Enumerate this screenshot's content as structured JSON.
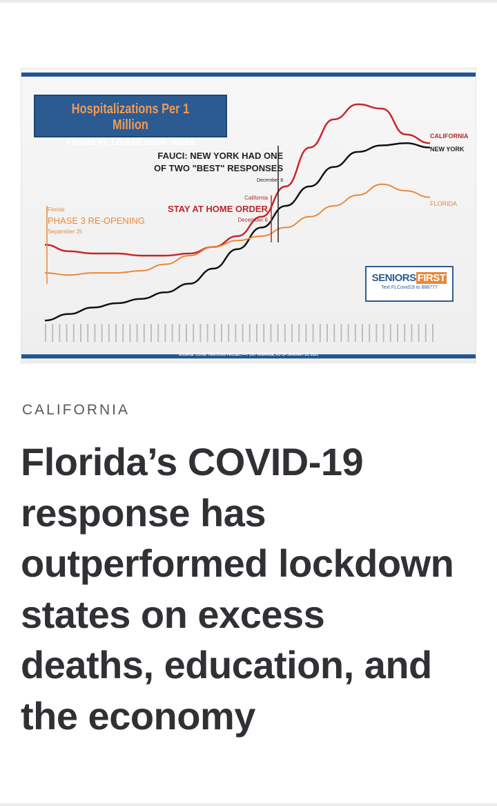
{
  "article": {
    "category": "CALIFORNIA",
    "headline": "Florida’s COVID-19 response has outperformed lockdown states on excess deaths, education, and the economy"
  },
  "hero_image": {
    "title": "Hospitalizations Per 1 Million",
    "subtitle": "Florida vs. Locked Down States",
    "annotations": {
      "fauci_line1": "FAUCI: NEW YORK HAD ONE",
      "fauci_line2": "OF TWO \"BEST\" RESPONSES",
      "fauci_date": "December 8",
      "california_label": "California",
      "stay_home": "STAY AT HOME ORDER",
      "stay_home_date": "December 6",
      "florida_label": "Florida",
      "phase3": "PHASE 3 RE-OPENING",
      "phase3_date": "September 25"
    },
    "logo": {
      "seniors": "SENIORS",
      "first": "FIRST",
      "tagline": "Text FLCovid19 to 888777"
    },
    "source": "SOURCE: COVID TRACKING PROJECT—7 DAY AVERAGE, AS OF JANUARY 26, 2021",
    "colors": {
      "brand_blue": "#2c5b92",
      "california": "#c8262a",
      "new_york": "#111111",
      "florida": "#e8883a"
    }
  },
  "chart_data": {
    "type": "line",
    "title": "Hospitalizations Per 1 Million",
    "subtitle": "Florida vs. Locked Down States",
    "series": [
      {
        "name": "CALIFORNIA",
        "color": "#c8262a",
        "values": [
          0.35,
          0.32,
          0.31,
          0.31,
          0.3,
          0.3,
          0.31,
          0.34,
          0.39,
          0.48,
          0.62,
          0.8,
          0.93,
          1.0,
          0.98,
          0.86,
          0.82
        ]
      },
      {
        "name": "NEW YORK",
        "color": "#111111",
        "values": [
          0.0,
          0.03,
          0.06,
          0.08,
          0.1,
          0.13,
          0.17,
          0.24,
          0.33,
          0.43,
          0.53,
          0.62,
          0.71,
          0.78,
          0.81,
          0.82,
          0.8
        ]
      },
      {
        "name": "FLORIDA",
        "color": "#e8883a",
        "values": [
          0.22,
          0.21,
          0.22,
          0.22,
          0.23,
          0.26,
          0.3,
          0.34,
          0.37,
          0.39,
          0.43,
          0.48,
          0.53,
          0.58,
          0.63,
          0.6,
          0.57
        ]
      }
    ]
  }
}
